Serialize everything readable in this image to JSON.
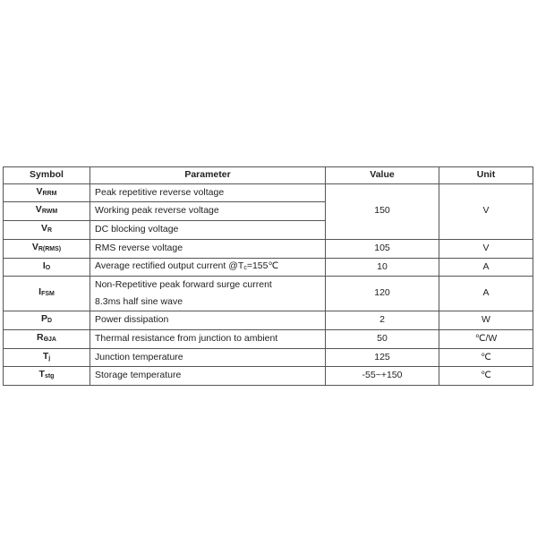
{
  "headers": {
    "symbol": "Symbol",
    "parameter": "Parameter",
    "value": "Value",
    "unit": "Unit"
  },
  "rows": [
    {
      "sym": "V",
      "sub": "RRM",
      "param": "Peak repetitive reverse voltage"
    },
    {
      "sym": "V",
      "sub": "RWM",
      "param": "Working peak reverse voltage"
    },
    {
      "sym": "V",
      "sub": "R",
      "param": "DC blocking voltage"
    },
    {
      "sym": "V",
      "sub": "R(RMS)",
      "param": "RMS reverse voltage",
      "value": "105",
      "unit": "V"
    },
    {
      "sym": "I",
      "sub": "O",
      "param_pre": "Average rectified output current @T",
      "param_sub": "c",
      "param_post": "=155℃",
      "value": "10",
      "unit": "A"
    },
    {
      "sym": "I",
      "sub": "FSM",
      "param": "Non-Repetitive peak forward surge current",
      "param2": "8.3ms half sine wave",
      "value": "120",
      "unit": "A"
    },
    {
      "sym": "P",
      "sub": "D",
      "param": "Power dissipation",
      "value": "2",
      "unit": "W"
    },
    {
      "sym": "R",
      "sub": "ΘJA",
      "param": "Thermal resistance from junction to ambient",
      "value": "50",
      "unit": "℃/W"
    },
    {
      "sym": "T",
      "sub": "j",
      "param": "Junction temperature",
      "value": "125",
      "unit": "℃"
    },
    {
      "sym": "T",
      "sub": "stg",
      "param": "Storage temperature",
      "value": "-55~+150",
      "unit": "℃"
    }
  ],
  "group_voltage": {
    "value": "150",
    "unit": "V"
  }
}
